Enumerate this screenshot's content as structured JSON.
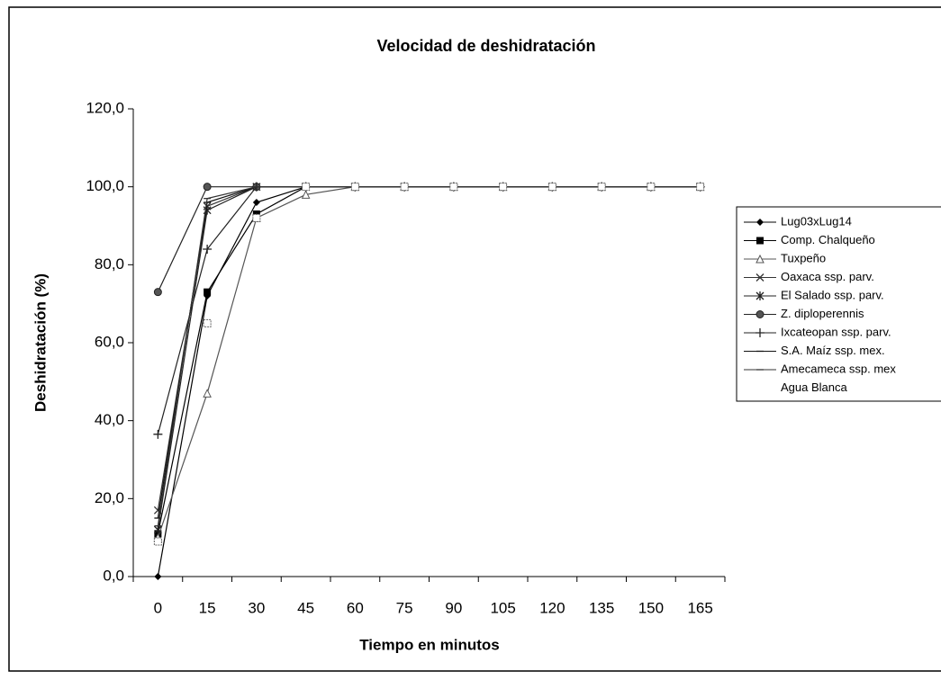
{
  "chart_data": {
    "type": "line",
    "title": "Velocidad de deshidratación",
    "x_label": "Tiempo en minutos",
    "y_label": "Deshidratación (%)",
    "categories": [
      "0",
      "15",
      "30",
      "45",
      "60",
      "75",
      "90",
      "105",
      "120",
      "135",
      "150",
      "165"
    ],
    "ylim": [
      0,
      120
    ],
    "yticks": [
      {
        "value": 0,
        "label": "0,0"
      },
      {
        "value": 20,
        "label": "20,0"
      },
      {
        "value": 40,
        "label": "40,0"
      },
      {
        "value": 60,
        "label": "60,0"
      },
      {
        "value": 80,
        "label": "80,0"
      },
      {
        "value": 100,
        "label": "100,0"
      },
      {
        "value": 120,
        "label": "120,0"
      }
    ],
    "series": [
      {
        "name": "Lug03xLug14",
        "color": "#000000",
        "marker": "diamond",
        "line": true,
        "values": [
          0,
          72,
          96,
          100,
          100,
          100,
          100,
          100,
          100,
          100,
          100,
          100
        ]
      },
      {
        "name": "Comp. Chalqueño",
        "color": "#000000",
        "marker": "square",
        "line": true,
        "values": [
          11,
          73,
          93,
          100,
          100,
          100,
          100,
          100,
          100,
          100,
          100,
          100
        ]
      },
      {
        "name": "Tuxpeño",
        "color": "#555555",
        "marker": "triangle",
        "line": true,
        "values": [
          10,
          47,
          92,
          98,
          100,
          100,
          100,
          100,
          100,
          100,
          100,
          100
        ]
      },
      {
        "name": "Oaxaca ssp. parv.",
        "color": "#333333",
        "marker": "x",
        "line": true,
        "values": [
          17,
          95,
          100,
          100,
          100,
          100,
          100,
          100,
          100,
          100,
          100,
          100
        ]
      },
      {
        "name": "El Salado ssp. parv.",
        "color": "#222222",
        "marker": "asterisk",
        "line": true,
        "values": [
          12,
          94,
          100,
          100,
          100,
          100,
          100,
          100,
          100,
          100,
          100,
          100
        ]
      },
      {
        "name": "Z. diploperennis",
        "color": "#222222",
        "marker": "circle",
        "line": true,
        "values": [
          73,
          100,
          100,
          100,
          100,
          100,
          100,
          100,
          100,
          100,
          100,
          100
        ]
      },
      {
        "name": "Ixcateopan ssp. parv.",
        "color": "#222222",
        "marker": "plus",
        "line": true,
        "values": [
          36.5,
          84,
          100,
          100,
          100,
          100,
          100,
          100,
          100,
          100,
          100,
          100
        ]
      },
      {
        "name": "S.A. Maíz ssp. mex.",
        "color": "#111111",
        "marker": "dash",
        "line": true,
        "values": [
          15,
          96,
          100,
          100,
          100,
          100,
          100,
          100,
          100,
          100,
          100,
          100
        ]
      },
      {
        "name": "Amecameca ssp. mex",
        "color": "#333333",
        "marker": "dash",
        "line": true,
        "values": [
          13,
          97,
          100,
          100,
          100,
          100,
          100,
          100,
          100,
          100,
          100,
          100
        ]
      },
      {
        "name": "Agua Blanca",
        "color": "#666666",
        "marker": "square-open",
        "line": false,
        "values": [
          9,
          65,
          92,
          100,
          100,
          100,
          100,
          100,
          100,
          100,
          100,
          100
        ]
      }
    ]
  }
}
